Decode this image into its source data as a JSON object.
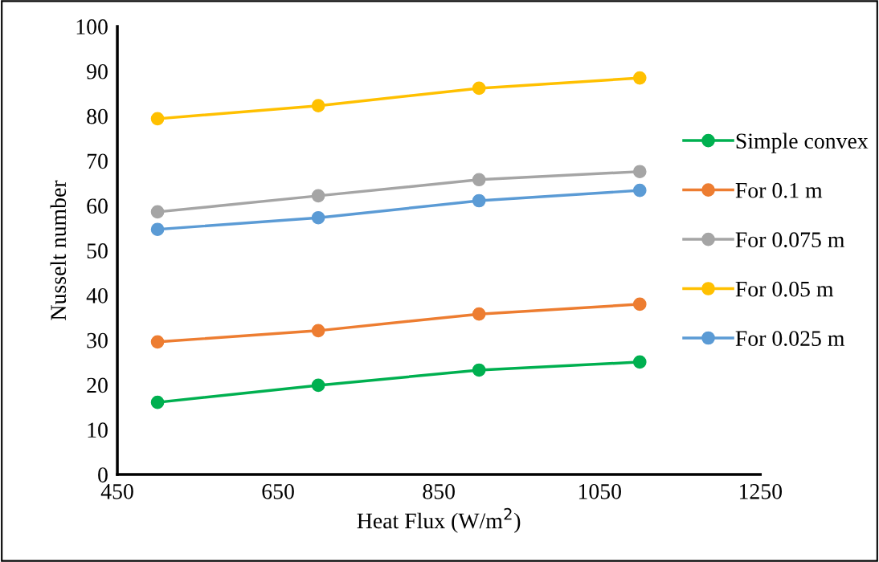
{
  "chart_data": {
    "type": "line",
    "xlabel": "Heat Flux (W/m$^{2}$)",
    "ylabel": "Nusselt number",
    "x": [
      500,
      700,
      900,
      1100
    ],
    "series": [
      {
        "name": "Simple convex",
        "color": "#00b050",
        "values": [
          16.1,
          19.9,
          23.3,
          25.1
        ]
      },
      {
        "name": "For 0.1 m",
        "color": "#ed7d31",
        "values": [
          29.6,
          32.1,
          35.8,
          38.0
        ]
      },
      {
        "name": "For 0.075 m",
        "color": "#a5a5a5",
        "values": [
          58.6,
          62.2,
          65.8,
          67.6
        ]
      },
      {
        "name": "For 0.05 m",
        "color": "#ffc000",
        "values": [
          79.4,
          82.3,
          86.2,
          88.5
        ]
      },
      {
        "name": "For 0.025 m",
        "color": "#5b9bd5",
        "values": [
          54.7,
          57.3,
          61.1,
          63.4
        ]
      }
    ],
    "xlim": [
      450,
      1250
    ],
    "xticks": [
      450,
      650,
      850,
      1050,
      1250
    ],
    "ylim": [
      0,
      100
    ],
    "yticks": [
      0,
      10,
      20,
      30,
      40,
      50,
      60,
      70,
      80,
      90,
      100
    ],
    "grid": false,
    "legend": "right",
    "marker": "circle",
    "line_style": "solid"
  }
}
